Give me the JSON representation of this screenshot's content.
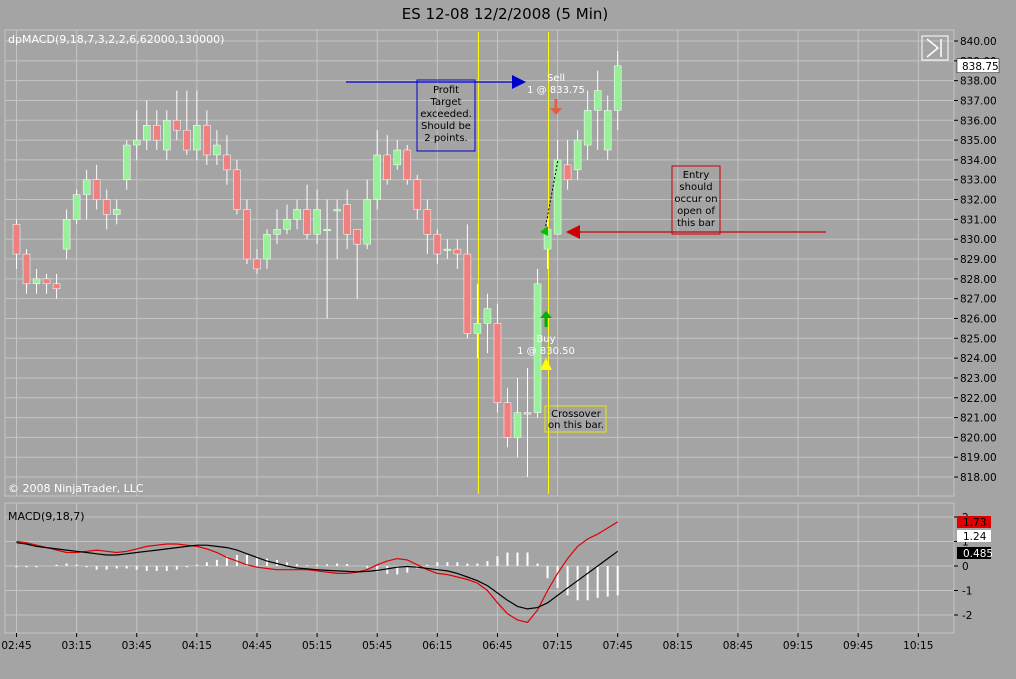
{
  "title": "ES 12-08  12/2/2008 (5 Min)",
  "copyright": "© 2008 NinjaTrader, LLC",
  "colors": {
    "background": "#a4a4a4",
    "grid": "#c4c4c4",
    "up_candle": "#98f098",
    "down_candle": "#f08080",
    "wick": "#ffffff",
    "macd_line": "#000000",
    "avg_line": "#e00000",
    "histogram": "#ffffff",
    "marker_line": "#ffff00",
    "blue_note": "#0000cc",
    "red_note": "#cc0000",
    "yellow_note": "#e8e800",
    "current_price_tag": "#ffffff"
  },
  "price_panel": {
    "indicator_label": "dpMACD(9,18,7,3,2,2,6,62000,130000)",
    "current_price_label": "838.75",
    "yaxis_labels": [
      "840.00",
      "839.00",
      "838.00",
      "837.00",
      "836.00",
      "835.00",
      "834.00",
      "833.00",
      "832.00",
      "831.00",
      "830.00",
      "829.00",
      "828.00",
      "827.00",
      "826.00",
      "825.00",
      "824.00",
      "823.00",
      "822.00",
      "821.00",
      "820.00",
      "819.00",
      "818.00"
    ],
    "annotations": {
      "profit_note": [
        "Profit",
        "Target",
        "exceeded.",
        "Should be",
        "2 points."
      ],
      "entry_note": [
        "Entry",
        "should",
        "occur on",
        "open of",
        "this bar"
      ],
      "crossover_note": [
        "Crossover",
        "on this bar."
      ],
      "sell_label": [
        "Sell",
        "1 @ 833.75"
      ],
      "buy_label": [
        "Buy",
        "1 @ 830.50"
      ]
    }
  },
  "macd_panel": {
    "label": "MACD(9,18,7)",
    "value_tags": [
      "1.73",
      "1.24",
      "0.485"
    ],
    "yaxis_labels": [
      "2",
      "1",
      "0",
      "-1",
      "-2"
    ]
  },
  "x_axis_labels": [
    "02:45",
    "03:15",
    "03:45",
    "04:15",
    "04:45",
    "05:15",
    "05:45",
    "06:15",
    "06:45",
    "07:15",
    "07:45",
    "08:15",
    "08:45",
    "09:15",
    "09:45",
    "10:15"
  ],
  "chart_data": [
    {
      "type": "candlestick",
      "title": "ES 12-08  12/2/2008 (5 Min)",
      "ylim": [
        817.5,
        840.5
      ],
      "x": [
        "02:45",
        "02:50",
        "02:55",
        "03:00",
        "03:05",
        "03:10",
        "03:15",
        "03:20",
        "03:25",
        "03:30",
        "03:35",
        "03:40",
        "03:45",
        "03:50",
        "03:55",
        "04:00",
        "04:05",
        "04:10",
        "04:15",
        "04:20",
        "04:25",
        "04:30",
        "04:35",
        "04:40",
        "04:45",
        "04:50",
        "04:55",
        "05:00",
        "05:05",
        "05:10",
        "05:15",
        "05:20",
        "05:25",
        "05:30",
        "05:35",
        "05:40",
        "05:45",
        "05:50",
        "05:55",
        "06:00",
        "06:05",
        "06:10",
        "06:15",
        "06:20",
        "06:25",
        "06:30",
        "06:35",
        "06:40",
        "06:45",
        "06:50",
        "06:55",
        "07:00",
        "07:05",
        "07:10",
        "07:15",
        "07:20",
        "07:25",
        "07:30",
        "07:35",
        "07:40",
        "07:45"
      ],
      "open": [
        830.75,
        829.25,
        827.75,
        828.0,
        827.75,
        829.5,
        831.0,
        832.25,
        833.0,
        832.0,
        831.25,
        833.0,
        834.75,
        835.0,
        835.75,
        834.5,
        836.0,
        835.5,
        834.5,
        835.75,
        834.25,
        834.25,
        833.5,
        831.5,
        829.0,
        829.0,
        830.25,
        830.5,
        831.0,
        831.5,
        830.25,
        830.5,
        831.5,
        831.75,
        830.5,
        829.75,
        832.0,
        834.25,
        833.75,
        834.5,
        833.0,
        831.5,
        830.25,
        829.5,
        829.5,
        829.25,
        825.25,
        825.75,
        825.75,
        821.75,
        820.0,
        821.25,
        821.25,
        829.5,
        830.25,
        833.75,
        833.5,
        834.75,
        836.5,
        834.5,
        836.5
      ],
      "close": [
        829.25,
        827.75,
        828.0,
        827.75,
        827.5,
        831.0,
        832.25,
        833.0,
        832.0,
        831.25,
        831.5,
        834.75,
        835.0,
        835.75,
        835.0,
        836.0,
        835.5,
        834.5,
        835.75,
        834.25,
        834.75,
        833.5,
        831.5,
        829.0,
        828.5,
        830.25,
        830.5,
        831.0,
        831.5,
        830.25,
        831.5,
        830.5,
        831.5,
        830.25,
        829.75,
        832.0,
        834.25,
        833.0,
        834.5,
        833.0,
        831.5,
        830.25,
        829.25,
        829.5,
        829.25,
        825.25,
        825.75,
        826.5,
        821.75,
        820.0,
        821.25,
        821.25,
        827.75,
        830.5,
        834.0,
        833.0,
        835.0,
        836.5,
        837.5,
        836.5,
        838.75
      ],
      "high": [
        831.0,
        829.5,
        828.5,
        828.25,
        828.25,
        831.5,
        832.5,
        833.5,
        833.75,
        832.5,
        832.0,
        835.0,
        836.5,
        837.0,
        836.5,
        836.5,
        837.5,
        837.5,
        837.5,
        836.5,
        835.5,
        835.25,
        834.0,
        832.0,
        829.5,
        830.5,
        831.5,
        831.75,
        832.0,
        832.75,
        832.5,
        832.0,
        832.0,
        832.5,
        830.5,
        833.0,
        835.5,
        835.25,
        835.0,
        834.75,
        833.25,
        832.0,
        830.5,
        830.0,
        830.0,
        830.75,
        827.75,
        827.25,
        826.75,
        822.5,
        823.0,
        823.5,
        828.5,
        831.0,
        835.0,
        835.0,
        835.5,
        837.5,
        838.5,
        837.25,
        839.5
      ],
      "low": [
        828.5,
        827.25,
        827.25,
        827.25,
        827.0,
        829.0,
        830.75,
        831.0,
        831.5,
        830.5,
        830.75,
        832.5,
        834.0,
        834.5,
        834.5,
        834.0,
        835.0,
        834.25,
        834.0,
        833.75,
        833.75,
        832.75,
        831.25,
        828.75,
        828.25,
        828.5,
        829.75,
        830.25,
        830.5,
        830.0,
        829.75,
        826.0,
        829.0,
        829.5,
        827.0,
        829.5,
        831.5,
        832.75,
        833.5,
        832.75,
        831.0,
        829.25,
        828.75,
        829.0,
        828.5,
        825.0,
        824.0,
        824.25,
        821.25,
        819.5,
        819.0,
        818.0,
        821.0,
        828.5,
        830.25,
        832.5,
        833.0,
        834.0,
        834.5,
        834.0,
        835.5
      ]
    },
    {
      "type": "line",
      "title": "MACD(9,18,7)",
      "ylim": [
        -2.6,
        2.3
      ],
      "series": [
        {
          "name": "MACD",
          "values": [
            0.95,
            0.9,
            0.8,
            0.75,
            0.7,
            0.65,
            0.6,
            0.55,
            0.5,
            0.45,
            0.45,
            0.5,
            0.55,
            0.6,
            0.65,
            0.7,
            0.75,
            0.8,
            0.85,
            0.85,
            0.8,
            0.75,
            0.65,
            0.5,
            0.35,
            0.2,
            0.1,
            0.0,
            -0.08,
            -0.12,
            -0.15,
            -0.18,
            -0.2,
            -0.22,
            -0.24,
            -0.22,
            -0.18,
            -0.12,
            -0.05,
            -0.02,
            -0.05,
            -0.1,
            -0.15,
            -0.2,
            -0.3,
            -0.45,
            -0.6,
            -0.8,
            -1.1,
            -1.4,
            -1.65,
            -1.75,
            -1.7,
            -1.5,
            -1.2,
            -0.9,
            -0.6,
            -0.3,
            0.0,
            0.3,
            0.6
          ]
        },
        {
          "name": "Avg",
          "values": [
            1.0,
            0.95,
            0.85,
            0.75,
            0.65,
            0.55,
            0.55,
            0.6,
            0.65,
            0.6,
            0.55,
            0.6,
            0.7,
            0.8,
            0.85,
            0.9,
            0.9,
            0.85,
            0.8,
            0.7,
            0.55,
            0.35,
            0.2,
            0.05,
            -0.05,
            -0.1,
            -0.15,
            -0.15,
            -0.15,
            -0.15,
            -0.2,
            -0.25,
            -0.3,
            -0.3,
            -0.25,
            -0.15,
            0.05,
            0.2,
            0.3,
            0.25,
            0.05,
            -0.15,
            -0.3,
            -0.35,
            -0.45,
            -0.55,
            -0.7,
            -1.0,
            -1.5,
            -1.95,
            -2.2,
            -2.3,
            -1.8,
            -1.0,
            -0.3,
            0.3,
            0.8,
            1.1,
            1.3,
            1.55,
            1.8
          ]
        },
        {
          "name": "Diff",
          "values": [
            -0.05,
            -0.05,
            -0.05,
            0.0,
            0.05,
            0.1,
            0.05,
            -0.05,
            -0.15,
            -0.15,
            -0.1,
            -0.1,
            -0.15,
            -0.2,
            -0.2,
            -0.2,
            -0.15,
            -0.05,
            0.05,
            0.15,
            0.25,
            0.4,
            0.45,
            0.45,
            0.4,
            0.3,
            0.25,
            0.15,
            0.07,
            0.03,
            0.05,
            0.07,
            0.1,
            0.08,
            0.01,
            -0.07,
            -0.23,
            -0.32,
            -0.35,
            -0.27,
            -0.1,
            0.05,
            0.15,
            0.15,
            0.15,
            0.1,
            0.1,
            0.2,
            0.4,
            0.55,
            0.55,
            0.55,
            0.1,
            -0.5,
            -0.9,
            -1.2,
            -1.4,
            -1.4,
            -1.3,
            -1.25,
            -1.2
          ]
        }
      ]
    }
  ]
}
